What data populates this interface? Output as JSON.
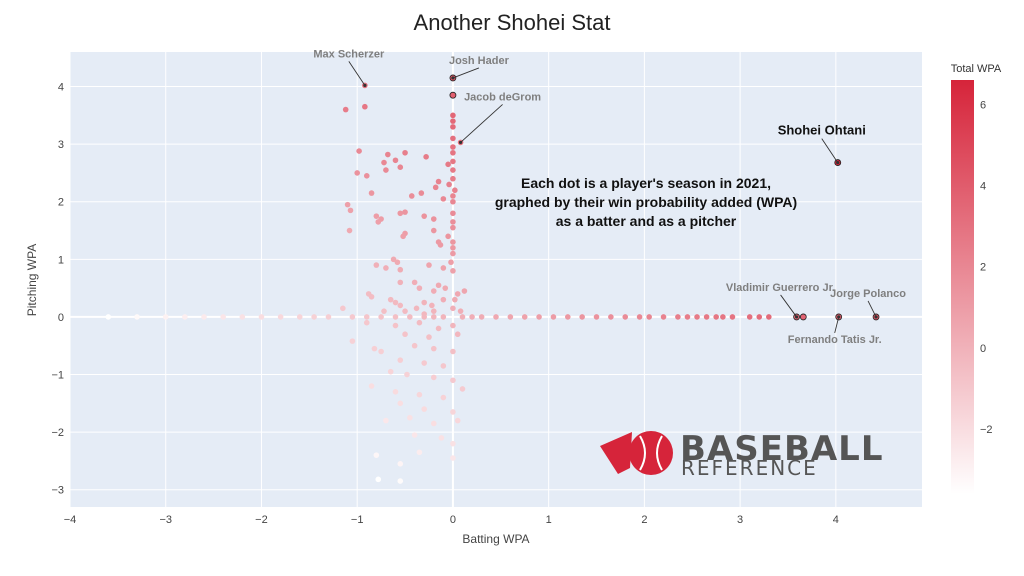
{
  "chart_data": {
    "type": "scatter",
    "title": "Another Shohei Stat",
    "xlabel": "Batting WPA",
    "ylabel": "Pitching WPA",
    "xlim": [
      -4,
      4.9
    ],
    "ylim": [
      -3.3,
      4.6
    ],
    "x_ticks": [
      -4,
      -3,
      -2,
      -1,
      0,
      1,
      2,
      3,
      4
    ],
    "y_ticks": [
      -3,
      -2,
      -1,
      0,
      1,
      2,
      3,
      4
    ],
    "x_tick_labels": [
      "−4",
      "−3",
      "−2",
      "−1",
      "0",
      "1",
      "2",
      "3",
      "4"
    ],
    "y_tick_labels": [
      "−3",
      "−2",
      "−1",
      "0",
      "1",
      "2",
      "3",
      "4"
    ],
    "grid": true,
    "background": "#e5ecf6",
    "colorbar": {
      "title": "Total WPA",
      "range": [
        -3.6,
        6.6
      ],
      "ticks": [
        -2,
        0,
        2,
        4,
        6
      ],
      "tick_labels": [
        "−2",
        "0",
        "2",
        "4",
        "6"
      ],
      "colors": [
        "#ffffff",
        "#d6243a"
      ]
    },
    "annotations": [
      {
        "text": "Max Scherzer",
        "x": -0.92,
        "y": 4.02,
        "style": "gray"
      },
      {
        "text": "Josh Hader",
        "x": 0.0,
        "y": 4.15,
        "style": "gray"
      },
      {
        "text": "Jacob deGrom",
        "x": 0.08,
        "y": 3.03,
        "style": "gray"
      },
      {
        "text": "Shohei Ohtani",
        "x": 4.02,
        "y": 2.68,
        "style": "black"
      },
      {
        "text": "Vladimir Guerrero Jr.",
        "x": 3.59,
        "y": 0.0,
        "style": "gray"
      },
      {
        "text": "Jorge Polanco",
        "x": 4.42,
        "y": 0.0,
        "style": "gray"
      },
      {
        "text": "Fernando Tatis Jr.",
        "x": 4.03,
        "y": 0.0,
        "style": "gray"
      }
    ],
    "note_lines": [
      "Each dot is a player's season in 2021,",
      "graphed by their win probability added (WPA)",
      "as a batter and as a pitcher"
    ],
    "points": [
      [
        -0.92,
        4.02
      ],
      [
        0.0,
        4.15
      ],
      [
        0.08,
        3.03
      ],
      [
        4.02,
        2.68
      ],
      [
        3.59,
        0.0
      ],
      [
        4.42,
        0.0
      ],
      [
        4.03,
        0.0
      ],
      [
        -1.12,
        3.6
      ],
      [
        -0.92,
        3.65
      ],
      [
        0.0,
        3.85
      ],
      [
        0.0,
        3.5
      ],
      [
        0.0,
        3.4
      ],
      [
        0.0,
        3.3
      ],
      [
        0.0,
        3.1
      ],
      [
        0.0,
        2.95
      ],
      [
        0.0,
        2.85
      ],
      [
        -0.98,
        2.88
      ],
      [
        -0.5,
        2.85
      ],
      [
        -0.68,
        2.82
      ],
      [
        -0.28,
        2.78
      ],
      [
        -0.6,
        2.72
      ],
      [
        -0.7,
        2.55
      ],
      [
        -0.55,
        2.6
      ],
      [
        -0.72,
        2.68
      ],
      [
        -1.0,
        2.5
      ],
      [
        -0.9,
        2.45
      ],
      [
        -0.05,
        2.65
      ],
      [
        0.0,
        2.7
      ],
      [
        0.0,
        2.55
      ],
      [
        -0.15,
        2.35
      ],
      [
        0.0,
        2.4
      ],
      [
        -0.04,
        2.3
      ],
      [
        -0.85,
        2.15
      ],
      [
        -0.43,
        2.1
      ],
      [
        -0.33,
        2.15
      ],
      [
        -0.18,
        2.25
      ],
      [
        -0.1,
        2.05
      ],
      [
        0.0,
        2.1
      ],
      [
        0.0,
        2.0
      ],
      [
        0.02,
        2.2
      ],
      [
        -1.1,
        1.95
      ],
      [
        -1.07,
        1.85
      ],
      [
        -0.55,
        1.8
      ],
      [
        -0.5,
        1.82
      ],
      [
        -0.3,
        1.75
      ],
      [
        -0.2,
        1.7
      ],
      [
        0.0,
        1.8
      ],
      [
        0.0,
        1.65
      ],
      [
        -0.8,
        1.75
      ],
      [
        -0.75,
        1.7
      ],
      [
        -0.78,
        1.65
      ],
      [
        -0.5,
        1.45
      ],
      [
        -0.52,
        1.4
      ],
      [
        -0.2,
        1.5
      ],
      [
        0.0,
        1.55
      ],
      [
        -0.05,
        1.4
      ],
      [
        -1.08,
        1.5
      ],
      [
        -0.15,
        1.3
      ],
      [
        -0.13,
        1.25
      ],
      [
        0.0,
        1.3
      ],
      [
        0.0,
        1.2
      ],
      [
        0.0,
        1.1
      ],
      [
        -0.62,
        1.0
      ],
      [
        -0.58,
        0.95
      ],
      [
        -0.8,
        0.9
      ],
      [
        -0.7,
        0.85
      ],
      [
        -0.55,
        0.82
      ],
      [
        -0.25,
        0.9
      ],
      [
        -0.1,
        0.85
      ],
      [
        -0.02,
        0.95
      ],
      [
        0.0,
        0.8
      ],
      [
        -0.55,
        0.6
      ],
      [
        -0.4,
        0.6
      ],
      [
        -0.35,
        0.5
      ],
      [
        -0.15,
        0.55
      ],
      [
        -0.2,
        0.45
      ],
      [
        -0.08,
        0.5
      ],
      [
        0.12,
        0.45
      ],
      [
        0.05,
        0.4
      ],
      [
        0.02,
        0.3
      ],
      [
        -0.88,
        0.4
      ],
      [
        -0.85,
        0.35
      ],
      [
        -0.65,
        0.3
      ],
      [
        -0.6,
        0.25
      ],
      [
        -0.55,
        0.2
      ],
      [
        -0.3,
        0.25
      ],
      [
        -0.22,
        0.2
      ],
      [
        -0.1,
        0.3
      ],
      [
        -1.15,
        0.15
      ],
      [
        -0.72,
        0.1
      ],
      [
        -0.5,
        0.1
      ],
      [
        -0.38,
        0.15
      ],
      [
        -0.2,
        0.1
      ],
      [
        0.0,
        0.15
      ],
      [
        0.08,
        0.1
      ],
      [
        -0.3,
        0.05
      ],
      [
        -1.3,
        0.0
      ],
      [
        -1.05,
        0.0
      ],
      [
        -0.9,
        0.0
      ],
      [
        -0.75,
        0.0
      ],
      [
        -0.6,
        0.0
      ],
      [
        -0.45,
        0.0
      ],
      [
        -0.3,
        0.0
      ],
      [
        -0.2,
        0.0
      ],
      [
        -0.1,
        0.0
      ],
      [
        0.1,
        0.0
      ],
      [
        0.2,
        0.0
      ],
      [
        0.3,
        0.0
      ],
      [
        0.45,
        0.0
      ],
      [
        0.6,
        0.0
      ],
      [
        0.75,
        0.0
      ],
      [
        0.9,
        0.0
      ],
      [
        1.05,
        0.0
      ],
      [
        1.2,
        0.0
      ],
      [
        1.35,
        0.0
      ],
      [
        1.5,
        0.0
      ],
      [
        1.65,
        0.0
      ],
      [
        1.8,
        0.0
      ],
      [
        1.95,
        0.0
      ],
      [
        2.05,
        0.0
      ],
      [
        2.2,
        0.0
      ],
      [
        2.35,
        0.0
      ],
      [
        2.45,
        0.0
      ],
      [
        2.55,
        0.0
      ],
      [
        2.65,
        0.0
      ],
      [
        2.75,
        0.0
      ],
      [
        2.82,
        0.0
      ],
      [
        2.92,
        0.0
      ],
      [
        3.1,
        0.0
      ],
      [
        3.2,
        0.0
      ],
      [
        3.3,
        0.0
      ],
      [
        3.66,
        0.0
      ],
      [
        -2.0,
        0.0
      ],
      [
        -2.2,
        0.0
      ],
      [
        -2.4,
        0.0
      ],
      [
        -2.6,
        0.0
      ],
      [
        -2.8,
        0.0
      ],
      [
        -3.0,
        0.0
      ],
      [
        -3.3,
        0.0
      ],
      [
        -3.6,
        0.0
      ],
      [
        -1.6,
        0.0
      ],
      [
        -1.8,
        0.0
      ],
      [
        -1.45,
        0.0
      ],
      [
        -0.9,
        -0.1
      ],
      [
        -0.6,
        -0.15
      ],
      [
        -0.35,
        -0.1
      ],
      [
        -0.15,
        -0.2
      ],
      [
        0.0,
        -0.15
      ],
      [
        -0.5,
        -0.3
      ],
      [
        -0.25,
        -0.35
      ],
      [
        0.05,
        -0.3
      ],
      [
        -1.05,
        -0.42
      ],
      [
        -0.82,
        -0.55
      ],
      [
        -0.75,
        -0.6
      ],
      [
        -0.4,
        -0.5
      ],
      [
        -0.2,
        -0.55
      ],
      [
        0.0,
        -0.6
      ],
      [
        -0.55,
        -0.75
      ],
      [
        -0.3,
        -0.8
      ],
      [
        -0.1,
        -0.85
      ],
      [
        -0.65,
        -0.95
      ],
      [
        -0.48,
        -1.0
      ],
      [
        -0.2,
        -1.05
      ],
      [
        0.0,
        -1.1
      ],
      [
        -0.85,
        -1.2
      ],
      [
        -0.6,
        -1.3
      ],
      [
        -0.35,
        -1.35
      ],
      [
        -0.1,
        -1.4
      ],
      [
        0.1,
        -1.25
      ],
      [
        -0.55,
        -1.5
      ],
      [
        -0.3,
        -1.6
      ],
      [
        0.0,
        -1.65
      ],
      [
        -0.45,
        -1.75
      ],
      [
        -0.2,
        -1.85
      ],
      [
        0.05,
        -1.8
      ],
      [
        -0.7,
        -1.8
      ],
      [
        -0.4,
        -2.05
      ],
      [
        -0.12,
        -2.1
      ],
      [
        0.0,
        -2.2
      ],
      [
        -0.35,
        -2.35
      ],
      [
        -0.8,
        -2.4
      ],
      [
        -0.55,
        -2.55
      ],
      [
        -0.78,
        -2.82
      ],
      [
        -0.55,
        -2.85
      ],
      [
        0.0,
        -2.45
      ]
    ]
  }
}
